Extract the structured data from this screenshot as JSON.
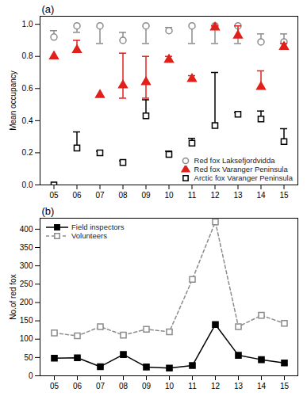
{
  "chart_data": [
    {
      "type": "scatter",
      "title": "(a)",
      "y_label": "Mean occupancy",
      "categories": [
        "05",
        "06",
        "07",
        "08",
        "09",
        "10",
        "11",
        "12",
        "13",
        "14",
        "15"
      ],
      "ylim": [
        0,
        1.05
      ],
      "yticks": [
        0,
        0.2,
        0.4,
        0.6,
        0.8,
        1
      ],
      "legend": "bottom-right",
      "series": [
        {
          "name": "Red fox Laksefjordvidda",
          "color": "#8c8c8c",
          "marker": "circle-open",
          "values": [
            0.92,
            0.99,
            0.99,
            0.9,
            0.99,
            0.96,
            0.99,
            0.99,
            0.99,
            0.89,
            0.89
          ],
          "errors": [
            [
              0.92,
              0.96
            ],
            [
              0.95,
              0.99
            ],
            [
              0.88,
              0.99
            ],
            [
              0.9,
              0.95
            ],
            [
              0.88,
              0.99
            ],
            [
              0.96,
              0.98
            ],
            [
              0.88,
              0.99
            ],
            [
              0.88,
              0.99
            ],
            [
              0.88,
              0.99
            ],
            [
              0.89,
              0.94
            ],
            [
              0.89,
              0.94
            ]
          ]
        },
        {
          "name": "Red fox Varanger Peninsula",
          "color": "#e0201b",
          "marker": "triangle",
          "values": [
            0.8,
            0.84,
            0.56,
            0.62,
            0.64,
            0.78,
            0.66,
            0.98,
            0.93,
            0.61,
            0.86
          ],
          "errors": [
            [
              0.8,
              0.8
            ],
            [
              0.84,
              0.9
            ],
            [
              0.55,
              0.56
            ],
            [
              0.54,
              0.82
            ],
            [
              0.54,
              0.8
            ],
            [
              0.78,
              0.8
            ],
            [
              0.66,
              0.68
            ],
            [
              0.98,
              0.99
            ],
            [
              0.93,
              0.99
            ],
            [
              0.61,
              0.71
            ],
            [
              0.86,
              0.88
            ]
          ]
        },
        {
          "name": "Arctic fox Varanger Peninsula",
          "color": "#000000",
          "marker": "square-open",
          "values": [
            0.0,
            0.23,
            0.2,
            0.14,
            0.43,
            0.19,
            0.26,
            0.37,
            0.44,
            0.41,
            0.27
          ],
          "errors": [
            [
              0.0,
              0.0
            ],
            [
              0.23,
              0.33
            ],
            [
              0.2,
              0.21
            ],
            [
              0.14,
              0.15
            ],
            [
              0.43,
              0.53
            ],
            [
              0.19,
              0.21
            ],
            [
              0.26,
              0.29
            ],
            [
              0.37,
              0.7
            ],
            [
              0.44,
              0.45
            ],
            [
              0.41,
              0.46
            ],
            [
              0.27,
              0.35
            ]
          ]
        }
      ]
    },
    {
      "type": "line",
      "title": "(b)",
      "y_label": "No.of red fox",
      "categories": [
        "05",
        "06",
        "07",
        "08",
        "09",
        "10",
        "11",
        "12",
        "13",
        "14",
        "15"
      ],
      "ylim": [
        0,
        430
      ],
      "yticks": [
        0,
        50,
        100,
        150,
        200,
        250,
        300,
        350,
        400
      ],
      "legend": "top-left",
      "series": [
        {
          "name": "Field inspectors",
          "color": "#000000",
          "marker": "square",
          "line_style": "solid",
          "values": [
            48,
            49,
            25,
            58,
            24,
            21,
            28,
            140,
            56,
            44,
            35
          ]
        },
        {
          "name": "Volunteers",
          "color": "#8c8c8c",
          "marker": "square-open",
          "line_style": "dashed",
          "values": [
            117,
            109,
            134,
            111,
            127,
            120,
            263,
            420,
            134,
            165,
            143
          ]
        }
      ]
    }
  ]
}
